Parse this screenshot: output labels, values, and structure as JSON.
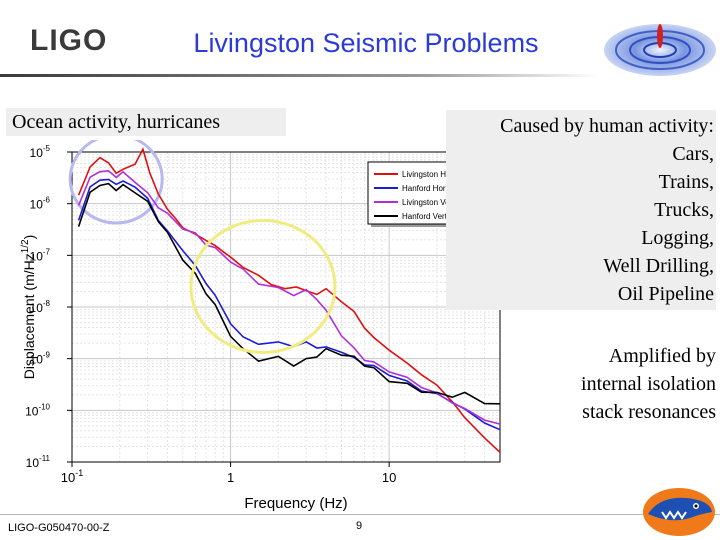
{
  "header": {
    "logo_text": "LIGO",
    "title": "Livingston Seismic Problems"
  },
  "notes": {
    "ocean": "Ocean activity, hurricanes",
    "caused": [
      "Caused by human activity:",
      "Cars,",
      "Trains,",
      "Trucks,",
      "Logging,",
      "Well Drilling,",
      "Oil Pipeline"
    ],
    "amplified": [
      "Amplified by",
      "internal isolation",
      "stack resonances"
    ]
  },
  "footer": {
    "doc_id": "LIGO-G050470-00-Z",
    "page": "9"
  },
  "colors": {
    "title": "#2b3bd6",
    "livingston_horizontal": "#e01010",
    "hanford_horizontal": "#1c1cd8",
    "livingston_vertical": "#b030d8",
    "hanford_vertical": "#000000",
    "ocean_circle": "#b8b8f0",
    "human_circle": "#f2ec80"
  },
  "chart_data": {
    "type": "line",
    "xscale": "log",
    "yscale": "log",
    "xlim": [
      0.1,
      50
    ],
    "ylim": [
      1e-11,
      1e-05
    ],
    "xlabel": "Frequency (Hz)",
    "ylabel_main": "Displacement (m/Hz",
    "ylabel_exp": "1/2",
    "ylabel_tail": ")",
    "xticks": [
      {
        "v": 0.1,
        "base": "10",
        "exp": "-1"
      },
      {
        "v": 1,
        "base": "1",
        "exp": ""
      },
      {
        "v": 10,
        "base": "10",
        "exp": ""
      }
    ],
    "yticks": [
      {
        "v": 1e-11,
        "base": "10",
        "exp": "-11"
      },
      {
        "v": 1e-10,
        "base": "10",
        "exp": "-10"
      },
      {
        "v": 1e-09,
        "base": "10",
        "exp": "-9"
      },
      {
        "v": 1e-08,
        "base": "10",
        "exp": "-8"
      },
      {
        "v": 1e-07,
        "base": "10",
        "exp": "-7"
      },
      {
        "v": 1e-06,
        "base": "10",
        "exp": "-6"
      },
      {
        "v": 1e-05,
        "base": "10",
        "exp": "-5"
      }
    ],
    "grid": true,
    "legend_position": "top-right",
    "series": [
      {
        "name": "Livingston Horizontal",
        "color": "#e01010",
        "x": [
          0.11,
          0.13,
          0.15,
          0.17,
          0.19,
          0.21,
          0.25,
          0.28,
          0.31,
          0.35,
          0.4,
          0.45,
          0.5,
          0.6,
          0.7,
          0.8,
          0.9,
          1.0,
          1.2,
          1.5,
          1.8,
          2.2,
          2.6,
          3.0,
          3.5,
          4.0,
          5,
          6,
          7,
          8,
          10,
          13,
          16,
          20,
          25,
          30,
          40,
          50
        ],
        "y": [
          1.5e-06,
          5e-06,
          8e-06,
          6e-06,
          4e-06,
          4.5e-06,
          6e-06,
          1.1e-05,
          4e-06,
          1.5e-06,
          8e-07,
          5e-07,
          3.5e-07,
          2.5e-07,
          2e-07,
          1.5e-07,
          1.2e-07,
          9e-08,
          6e-08,
          4e-08,
          2.8e-08,
          2.2e-08,
          2.5e-08,
          2e-08,
          1.8e-08,
          2.2e-08,
          1.3e-08,
          8e-09,
          4e-09,
          2.5e-09,
          1.5e-09,
          8e-10,
          5e-10,
          3e-10,
          1.5e-10,
          7e-11,
          3e-11,
          1.5e-11
        ]
      },
      {
        "name": "Hanford Horizontal",
        "color": "#1c1cd8",
        "x": [
          0.11,
          0.13,
          0.15,
          0.17,
          0.19,
          0.21,
          0.25,
          0.3,
          0.35,
          0.4,
          0.5,
          0.6,
          0.7,
          0.8,
          1.0,
          1.2,
          1.5,
          2.0,
          2.5,
          3.0,
          3.5,
          4.0,
          5,
          6,
          7,
          8,
          10,
          13,
          16,
          20,
          25,
          30,
          40,
          50
        ],
        "y": [
          5e-07,
          2e-06,
          3e-06,
          2.8e-06,
          2.5e-06,
          2.6e-06,
          2.2e-06,
          1.2e-06,
          5e-07,
          2.8e-07,
          1.3e-07,
          6e-08,
          3e-08,
          1.6e-08,
          5e-09,
          2.5e-09,
          2e-09,
          2e-09,
          1.8e-09,
          2e-09,
          1.7e-09,
          1.6e-09,
          1.4e-09,
          1e-09,
          8e-10,
          7e-10,
          5e-10,
          3.5e-10,
          2.5e-10,
          2e-10,
          1.5e-10,
          1e-10,
          6e-11,
          4e-11
        ]
      },
      {
        "name": "Livingston Vertical",
        "color": "#b030d8",
        "x": [
          0.11,
          0.13,
          0.15,
          0.17,
          0.19,
          0.21,
          0.25,
          0.3,
          0.35,
          0.4,
          0.5,
          0.6,
          0.7,
          0.8,
          1.0,
          1.2,
          1.5,
          2.0,
          2.5,
          3.0,
          3.5,
          4.0,
          5,
          6,
          7,
          8,
          10,
          13,
          16,
          20,
          25,
          30,
          40,
          50
        ],
        "y": [
          1e-06,
          3e-06,
          4.5e-06,
          4e-06,
          3.5e-06,
          3.8e-06,
          2.8e-06,
          1.5e-06,
          9e-07,
          6e-07,
          3.5e-07,
          2.5e-07,
          1.7e-07,
          1.3e-07,
          8e-08,
          5e-08,
          3e-08,
          2.2e-08,
          1.8e-08,
          2e-08,
          1.5e-08,
          8e-09,
          3e-09,
          1.5e-09,
          1e-09,
          8e-10,
          6e-10,
          4e-10,
          3e-10,
          2e-10,
          1.5e-10,
          1e-10,
          7e-11,
          5e-11
        ]
      },
      {
        "name": "Hanford Vertical",
        "color": "#000000",
        "x": [
          0.11,
          0.13,
          0.15,
          0.17,
          0.19,
          0.21,
          0.25,
          0.3,
          0.35,
          0.4,
          0.5,
          0.6,
          0.7,
          0.8,
          1.0,
          1.2,
          1.5,
          2.0,
          2.5,
          3.0,
          3.5,
          4.0,
          5,
          6,
          7,
          8,
          10,
          13,
          16,
          20,
          25,
          30,
          40,
          50
        ],
        "y": [
          4e-07,
          1.5e-06,
          2.5e-06,
          2.2e-06,
          2e-06,
          2.1e-06,
          1.8e-06,
          1e-06,
          5e-07,
          2.5e-07,
          9e-08,
          4e-08,
          2e-08,
          1e-08,
          3e-09,
          1.4e-09,
          1e-09,
          1e-09,
          8e-10,
          9e-10,
          1.2e-09,
          1.4e-09,
          1.3e-09,
          1e-09,
          8e-10,
          6e-10,
          4e-10,
          3e-10,
          2.5e-10,
          2e-10,
          2e-10,
          2e-10,
          1.5e-10,
          1.2e-10
        ]
      }
    ]
  }
}
